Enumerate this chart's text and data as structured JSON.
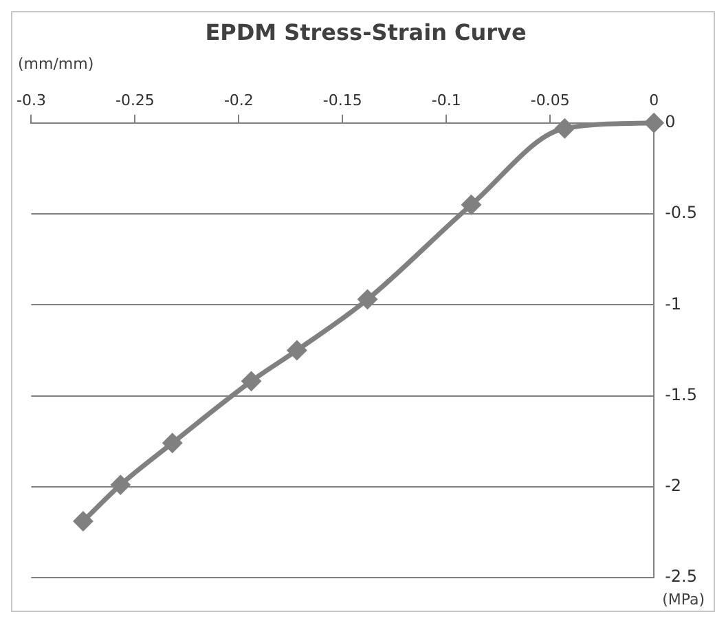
{
  "chart_data": {
    "type": "line",
    "title": "EPDM Stress-Strain Curve",
    "xlabel": "(mm/mm)",
    "ylabel": "(MPa)",
    "x": [
      0,
      -0.043,
      -0.088,
      -0.138,
      -0.172,
      -0.194,
      -0.232,
      -0.257,
      -0.275
    ],
    "series": [
      {
        "color": "#808080",
        "values": [
          0,
          -0.03,
          -0.45,
          -0.97,
          -1.25,
          -1.42,
          -1.76,
          -1.99,
          -2.19
        ]
      }
    ],
    "xlim": [
      -0.3,
      0
    ],
    "xticks": [
      -0.3,
      -0.25,
      -0.2,
      -0.15,
      -0.1,
      -0.05,
      0
    ],
    "ylim": [
      -2.5,
      0
    ],
    "yticks": [
      -2.5,
      -2,
      -1.5,
      -1,
      -0.5,
      0
    ],
    "grid": "y",
    "legend": false,
    "marker": "diamond",
    "line_style": "solid"
  }
}
